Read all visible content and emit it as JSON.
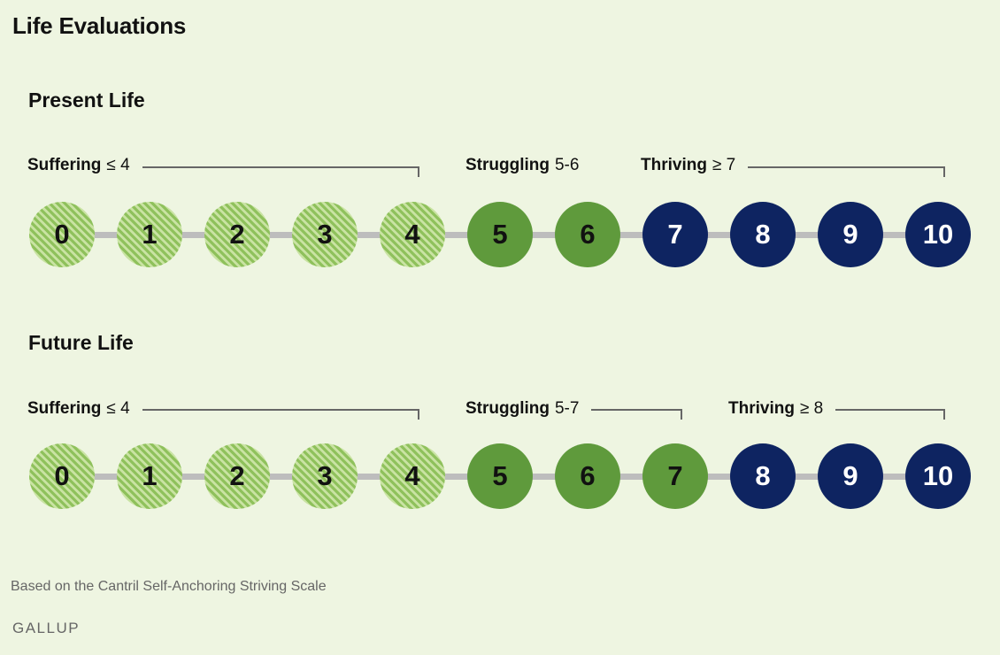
{
  "title": "Life Evaluations",
  "colors": {
    "background": "#eef5e1",
    "suffering_stripe_dark": "#8fc15c",
    "suffering_stripe_light": "#c9e3a3",
    "struggling": "#5f9a3c",
    "thriving": "#0e2461",
    "connector": "#bdbdbd",
    "bracket": "#666666"
  },
  "sections": [
    {
      "title": "Present Life",
      "groups": [
        {
          "name": "Suffering",
          "range": "≤ 4",
          "type": "suffering",
          "values": [
            "0",
            "1",
            "2",
            "3",
            "4"
          ]
        },
        {
          "name": "Struggling",
          "range": "5-6",
          "type": "struggling",
          "values": [
            "5",
            "6"
          ]
        },
        {
          "name": "Thriving",
          "range": "≥ 7",
          "type": "thriving",
          "values": [
            "7",
            "8",
            "9",
            "10"
          ]
        }
      ]
    },
    {
      "title": "Future Life",
      "groups": [
        {
          "name": "Suffering",
          "range": "≤ 4",
          "type": "suffering",
          "values": [
            "0",
            "1",
            "2",
            "3",
            "4"
          ]
        },
        {
          "name": "Struggling",
          "range": "5-7",
          "type": "struggling",
          "values": [
            "5",
            "6",
            "7"
          ]
        },
        {
          "name": "Thriving",
          "range": "≥ 8",
          "type": "thriving",
          "values": [
            "8",
            "9",
            "10"
          ]
        }
      ]
    }
  ],
  "footnote": "Based on the Cantril Self-Anchoring Striving Scale",
  "brand": "GALLUP"
}
